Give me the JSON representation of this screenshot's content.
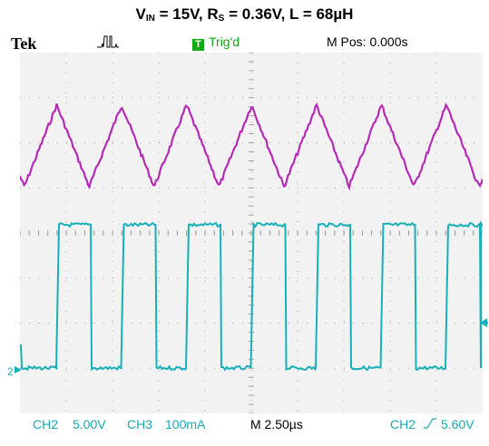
{
  "title": {
    "vin_main": "V",
    "vin_sub": "IN",
    "vin_rest": " = 15V, R",
    "rs_sub": "S",
    "rs_rest": " = 0.36V, L = 68µH"
  },
  "status_bar": {
    "brand": "Tek",
    "acquisition_icon": "pulse-acquire-icon",
    "trigger_badge": "T",
    "trigger_state": "Trig'd",
    "m_pos": "M Pos: 0.000s"
  },
  "bottom_bar": {
    "ch2_label": "CH2",
    "ch2_scale": "5.00V",
    "ch3_label": "CH3",
    "ch3_scale": "100mA",
    "time_scale": "M 2.50µs",
    "trigger_source": "CH2",
    "trigger_level": "5.60V"
  },
  "screen": {
    "ch2_marker": "2",
    "colors": {
      "ch3_trace": "#b52bb5",
      "ch2_trace": "#18b0b8",
      "grid": "#a0a0a0",
      "screen_bg": "#f2f2f2"
    }
  }
}
